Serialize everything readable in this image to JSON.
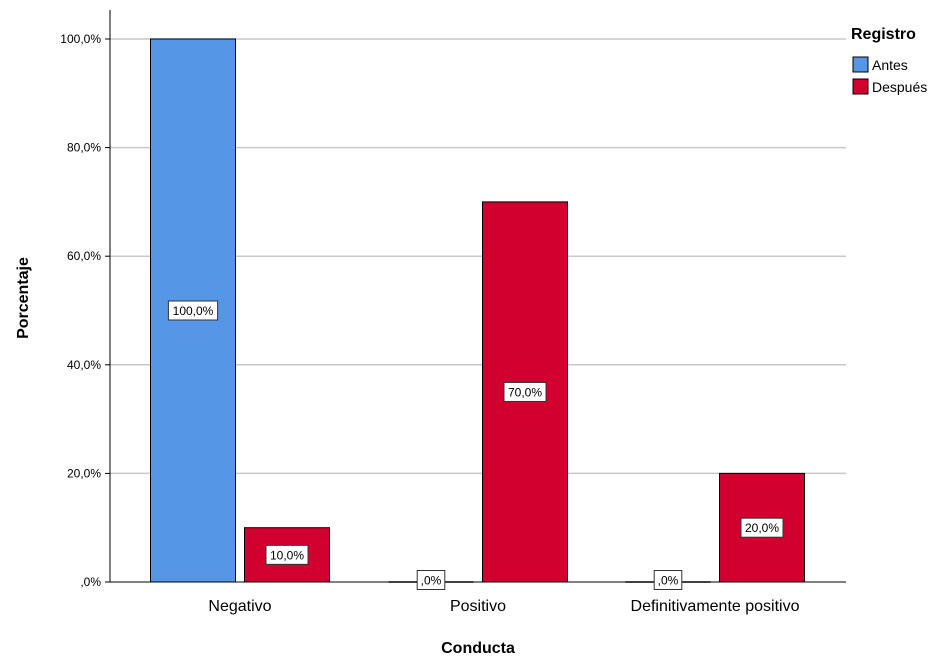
{
  "chart_data": {
    "type": "bar",
    "title": "",
    "xlabel": "Conducta",
    "ylabel": "Porcentaje",
    "categories": [
      "Negativo",
      "Positivo",
      "Definitivamente positivo"
    ],
    "series": [
      {
        "name": "Antes",
        "color": "#5596E6",
        "values": [
          100.0,
          0.0,
          0.0
        ],
        "labels": [
          "100,0%",
          ",0%",
          ",0%"
        ]
      },
      {
        "name": "Después",
        "color": "#D1002F",
        "values": [
          10.0,
          70.0,
          20.0
        ],
        "labels": [
          "10,0%",
          "70,0%",
          "20,0%"
        ]
      }
    ],
    "ylim": [
      0,
      105
    ],
    "yticks": [
      0,
      20,
      40,
      60,
      80,
      100
    ],
    "ytick_labels": [
      ",0%",
      "20,0%",
      "40,0%",
      "60,0%",
      "80,0%",
      "100,0%"
    ],
    "grid": true,
    "legend": {
      "title": "Registro",
      "position": "top-right",
      "entries": [
        "Antes",
        "Después"
      ]
    }
  }
}
